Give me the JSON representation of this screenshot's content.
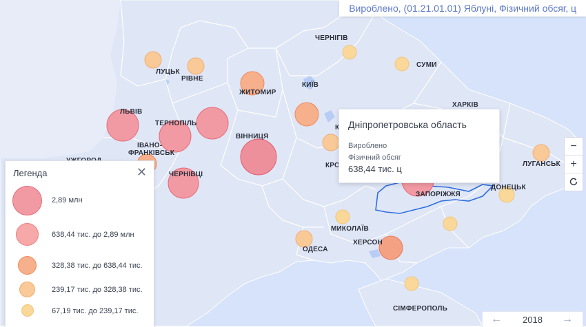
{
  "header": {
    "title": "Вироблено, (01.21.01.01) Яблуні, Фізичний обсяг, ц"
  },
  "colors": {
    "sea": "#d6e3fb",
    "land": "#dfe6f6",
    "border": "#ffffff",
    "highlight": "#2f6fe0"
  },
  "cities": {
    "chernihiv": "ЧЕРНІГІВ",
    "sumy": "СУМИ",
    "lutsk": "ЛУЦЬК",
    "rivne": "РІВНЕ",
    "zhytomyr": "ЖИТОМИР",
    "kyiv": "КИЇВ",
    "kharkiv": "ХАРКІВ",
    "lviv": "ЛЬВІВ",
    "ternopil": "ТЕРНОПІЛЬ",
    "vinnytsia": "ВІННИЦЯ",
    "ivano1": "ІВАНО-",
    "ivano2": "ФРАНКІВСЬК",
    "uzhhorod": "УЖГОРОД",
    "chernivtsi": "ЧЕРНІВЦІ",
    "luhansk": "ЛУГАНСЬК",
    "zaporizhzhia": "ЗАПОРІЖЖЯ",
    "donetsk": "ДОНЕЦЬК",
    "mykolaiv": "МИКОЛАЇВ",
    "odesa": "ОДЕСА",
    "kherson": "ХЕРСОН",
    "simferopol": "СІМФЕРОПОЛЬ",
    "kro": "КРО",
    "k": "К"
  },
  "tooltip": {
    "region": "Дніпропетровська область",
    "line1": "Вироблено",
    "line2": "Фізичний обсяг",
    "value": "638,44 тис. ц"
  },
  "legend": {
    "title": "Легенда",
    "close_icon": "close-icon",
    "items": [
      {
        "label": "2,89 млн",
        "color": "#f0a0ab"
      },
      {
        "label": "638,44 тис. до 2,89 млн",
        "color": "#f6b0ab"
      },
      {
        "label": "328,38 тис. до 638,44 тис.",
        "color": "#f7bc98"
      },
      {
        "label": "239,17 тис. до 328,38 тис.",
        "color": "#f9cf9b"
      },
      {
        "label": "67,19 тис. до 239,17 тис.",
        "color": "#f9de9c"
      }
    ]
  },
  "zoom": {
    "in": "+",
    "out": "−",
    "reset_icon": "refresh-icon"
  },
  "yearbar": {
    "year": "2018",
    "prev_icon": "arrow-left-icon",
    "next_icon": "arrow-right-icon"
  }
}
